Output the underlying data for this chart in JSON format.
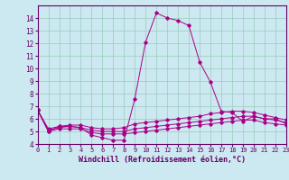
{
  "xlabel": "Windchill (Refroidissement éolien,°C)",
  "bg_color": "#cce8f0",
  "grid_color": "#99ccbb",
  "line_color": "#aa0088",
  "xlim": [
    0,
    23
  ],
  "ylim": [
    4,
    15
  ],
  "yticks": [
    4,
    5,
    6,
    7,
    8,
    9,
    10,
    11,
    12,
    13,
    14
  ],
  "xticks": [
    0,
    1,
    2,
    3,
    4,
    5,
    6,
    7,
    8,
    9,
    10,
    11,
    12,
    13,
    14,
    15,
    16,
    17,
    18,
    19,
    20,
    21,
    22,
    23
  ],
  "series": [
    {
      "x": [
        0,
        1,
        2,
        3,
        4,
        5,
        6,
        7,
        8,
        9,
        10,
        11,
        12,
        13,
        14,
        15,
        16,
        17,
        18,
        19,
        20,
        21,
        22,
        23
      ],
      "y": [
        6.7,
        5.0,
        5.4,
        5.4,
        5.3,
        4.7,
        4.5,
        4.3,
        4.3,
        7.6,
        12.1,
        14.4,
        14.0,
        13.8,
        13.4,
        10.5,
        8.9,
        6.6,
        6.5,
        5.8,
        6.2,
        6.0,
        6.0,
        5.6
      ]
    },
    {
      "x": [
        0,
        1,
        2,
        3,
        4,
        5,
        6,
        7,
        8,
        9,
        10,
        11,
        12,
        13,
        14,
        15,
        16,
        17,
        18,
        19,
        20,
        21,
        22,
        23
      ],
      "y": [
        6.7,
        5.2,
        5.4,
        5.5,
        5.5,
        5.3,
        5.2,
        5.2,
        5.3,
        5.6,
        5.7,
        5.8,
        5.9,
        6.0,
        6.1,
        6.2,
        6.4,
        6.5,
        6.6,
        6.6,
        6.5,
        6.3,
        6.1,
        5.9
      ]
    },
    {
      "x": [
        0,
        1,
        2,
        3,
        4,
        5,
        6,
        7,
        8,
        9,
        10,
        11,
        12,
        13,
        14,
        15,
        16,
        17,
        18,
        19,
        20,
        21,
        22,
        23
      ],
      "y": [
        6.7,
        5.1,
        5.3,
        5.4,
        5.3,
        5.1,
        5.0,
        5.0,
        5.0,
        5.2,
        5.3,
        5.4,
        5.5,
        5.6,
        5.7,
        5.8,
        5.9,
        6.0,
        6.1,
        6.2,
        6.2,
        6.0,
        5.9,
        5.7
      ]
    },
    {
      "x": [
        0,
        1,
        2,
        3,
        4,
        5,
        6,
        7,
        8,
        9,
        10,
        11,
        12,
        13,
        14,
        15,
        16,
        17,
        18,
        19,
        20,
        21,
        22,
        23
      ],
      "y": [
        6.7,
        5.0,
        5.2,
        5.2,
        5.2,
        4.9,
        4.8,
        4.8,
        4.8,
        4.9,
        5.0,
        5.1,
        5.2,
        5.3,
        5.4,
        5.5,
        5.6,
        5.7,
        5.8,
        5.9,
        5.9,
        5.7,
        5.6,
        5.5
      ]
    }
  ]
}
